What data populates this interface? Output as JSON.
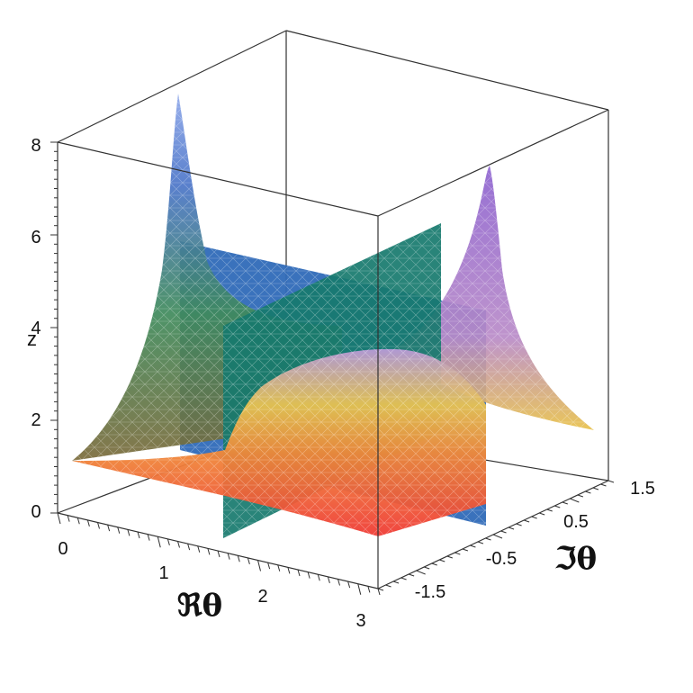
{
  "chart_data": {
    "type": "surface3d",
    "title": "",
    "xlabel": "ℜθ",
    "ylabel": "ℑθ",
    "zlabel": "z",
    "xticks": [
      "0",
      "1",
      "2",
      "3"
    ],
    "yticks": [
      "-1.5",
      "-0.5",
      "0.5",
      "1.5"
    ],
    "zticks": [
      "0",
      "2",
      "4",
      "6",
      "8"
    ],
    "xlim": [
      0,
      3.14
    ],
    "ylim": [
      -1.5,
      1.5
    ],
    "zlim": [
      0,
      8
    ],
    "surfaces": [
      {
        "name": "",
        "kind": "curved surface",
        "peak_z": 8,
        "colors": [
          "#ef4a3a",
          "#f7d03a",
          "#8a73d8",
          "#3f6fd6"
        ]
      },
      {
        "name": "",
        "kind": "vertical plane",
        "fixed": "Re",
        "value": 1.57,
        "color": "#1f7f73"
      },
      {
        "name": "",
        "kind": "vertical plane",
        "fixed": "Im",
        "value": 0,
        "color": "#2f6fb8"
      }
    ],
    "grid": false,
    "legend": "none"
  }
}
